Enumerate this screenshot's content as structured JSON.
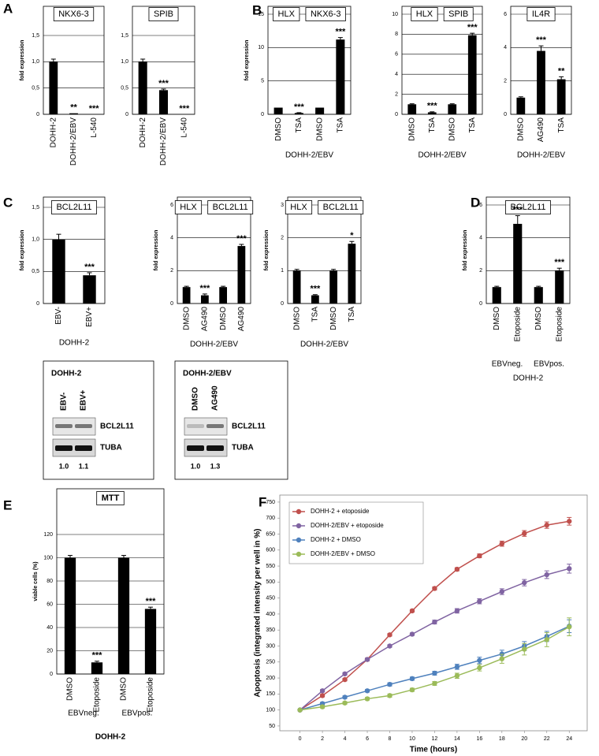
{
  "panel_labels": [
    "A",
    "B",
    "C",
    "D",
    "E",
    "F"
  ],
  "chart_data": [
    {
      "type": "bar",
      "titles": [
        "NKX6-3"
      ],
      "ylabel": "fold expression",
      "categories": [
        "DOHH-2",
        "DOHH-2/EBV",
        "L-540"
      ],
      "values": [
        1,
        0.02,
        0
      ],
      "errors": [
        0.05,
        0,
        0
      ],
      "annotations": [
        null,
        "**",
        "***"
      ],
      "ylim": [
        0,
        1.5
      ],
      "yticks": [
        0,
        {
          "value": 0.5,
          "label": "0,5"
        },
        {
          "value": 1,
          "label": "1,0"
        },
        {
          "value": 1.5,
          "label": "1,5"
        }
      ],
      "grid": true,
      "color": "#000000"
    },
    {
      "type": "bar",
      "titles": [
        "SPIB"
      ],
      "categories": [
        "DOHH-2",
        "DOHH-2/EBV",
        "L-540"
      ],
      "values": [
        1,
        0.46,
        0
      ],
      "errors": [
        0.05,
        0.02,
        0
      ],
      "annotations": [
        null,
        "***",
        "***"
      ],
      "ylim": [
        0,
        1.5
      ],
      "yticks": [
        0,
        {
          "value": 0.5,
          "label": "0,5"
        },
        {
          "value": 1,
          "label": "1,0"
        },
        {
          "value": 1.5,
          "label": "1,5"
        }
      ],
      "grid": true,
      "color": "#000000"
    },
    {
      "type": "bar",
      "titles": [
        "HLX",
        "NKX6-3"
      ],
      "ylabel": "fold expression",
      "xlabel": "DOHH-2/EBV",
      "categories": [
        "DMSO",
        "TSA",
        "DMSO",
        "TSA"
      ],
      "values": [
        1,
        0.2,
        1,
        11.2
      ],
      "errors": [
        0,
        0.05,
        0,
        0.3
      ],
      "annotations": [
        null,
        "***",
        null,
        "***"
      ],
      "ylim": [
        0,
        15
      ],
      "yticks": [
        0,
        5,
        10,
        15
      ],
      "grid": true,
      "color": "#000000"
    },
    {
      "type": "bar",
      "titles": [
        "HLX",
        "SPIB"
      ],
      "xlabel": "DOHH-2/EBV",
      "categories": [
        "DMSO",
        "TSA",
        "DMSO",
        "TSA"
      ],
      "values": [
        1,
        0.2,
        1,
        7.9
      ],
      "errors": [
        0.05,
        0.05,
        0.05,
        0.2
      ],
      "annotations": [
        null,
        "***",
        null,
        "***"
      ],
      "ylim": [
        0,
        10
      ],
      "yticks": [
        0,
        2,
        4,
        6,
        8,
        10
      ],
      "grid": true,
      "color": "#000000"
    },
    {
      "type": "bar",
      "titles": [
        "IL4R"
      ],
      "xlabel": "DOHH-2/EBV",
      "categories": [
        "DMSO",
        "AG490",
        "TSA"
      ],
      "values": [
        1,
        3.8,
        2.1
      ],
      "errors": [
        0.05,
        0.3,
        0.15
      ],
      "annotations": [
        null,
        "***",
        "**"
      ],
      "ylim": [
        0,
        6
      ],
      "yticks": [
        0,
        2,
        4,
        6
      ],
      "grid": true,
      "color": "#000000"
    },
    {
      "type": "bar",
      "titles": [
        "BCL2L11"
      ],
      "ylabel": "fold expression",
      "xlabel": "DOHH-2",
      "categories": [
        "EBV-",
        "EBV+"
      ],
      "values": [
        1,
        0.44
      ],
      "errors": [
        0.08,
        0.04
      ],
      "annotations": [
        null,
        "***"
      ],
      "ylim": [
        0,
        1.5
      ],
      "yticks": [
        0,
        {
          "value": 0.5,
          "label": "0,5"
        },
        {
          "value": 1,
          "label": "1,0"
        },
        {
          "value": 1.5,
          "label": "1,5"
        }
      ],
      "grid": true,
      "color": "#000000"
    },
    {
      "type": "bar",
      "titles": [
        "HLX",
        "BCL2L11"
      ],
      "ylabel": "fold expression",
      "xlabel": "DOHH-2/EBV",
      "categories": [
        "DMSO",
        "AG490",
        "DMSO",
        "AG490"
      ],
      "values": [
        1,
        0.5,
        1,
        3.5
      ],
      "errors": [
        0.05,
        0.08,
        0.05,
        0.1
      ],
      "annotations": [
        null,
        "***",
        null,
        "***"
      ],
      "ylim": [
        0,
        6
      ],
      "yticks": [
        0,
        2,
        4,
        6
      ],
      "grid": true,
      "color": "#000000"
    },
    {
      "type": "bar",
      "titles": [
        "HLX",
        "BCL2L11"
      ],
      "ylabel": "fold expression",
      "xlabel": "DOHH-2/EBV",
      "categories": [
        "DMSO",
        "TSA",
        "DMSO",
        "TSA"
      ],
      "values": [
        1,
        0.25,
        1,
        1.82
      ],
      "errors": [
        0.04,
        0.02,
        0.04,
        0.07
      ],
      "annotations": [
        null,
        "***",
        null,
        "*"
      ],
      "ylim": [
        0,
        3
      ],
      "yticks": [
        0,
        1,
        2,
        3
      ],
      "grid": true,
      "color": "#000000"
    },
    {
      "type": "bar",
      "titles": [
        "BCL2L11"
      ],
      "ylabel": "fold expression",
      "xlabel": "DOHH-2",
      "groups": [
        "EBVneg.",
        "EBVpos."
      ],
      "categories": [
        "DMSO",
        "Etoposide",
        "DMSO",
        "Etoposide"
      ],
      "values": [
        1,
        4.85,
        1,
        2
      ],
      "errors": [
        0.05,
        0.5,
        0.05,
        0.15
      ],
      "annotations": [
        null,
        "***",
        null,
        "***"
      ],
      "ylim": [
        0,
        6
      ],
      "yticks": [
        0,
        2,
        4,
        6
      ],
      "grid": true,
      "color": "#000000"
    },
    {
      "type": "bar",
      "titles": [
        "MTT"
      ],
      "ylabel": "viable cells (%)",
      "xlabel": "DOHH-2",
      "groups": [
        "EBVneg.",
        "EBVpos."
      ],
      "categories": [
        "DMSO",
        "Etoposide",
        "DMSO",
        "Etoposide"
      ],
      "values": [
        100,
        10,
        100,
        56
      ],
      "errors": [
        2,
        1,
        2,
        1.5
      ],
      "annotations": [
        null,
        "***",
        null,
        "***"
      ],
      "ylim": [
        0,
        120
      ],
      "yticks": [
        0,
        20,
        40,
        60,
        80,
        100,
        120
      ],
      "grid": true,
      "color": "#000000"
    },
    {
      "type": "line",
      "xlabel": "Time (hours)",
      "ylabel": "Apoptosis (integrated intensity per well in %)",
      "x": [
        0,
        2,
        4,
        6,
        8,
        10,
        12,
        14,
        16,
        18,
        20,
        22,
        24
      ],
      "xlim": [
        -1.8,
        25.6
      ],
      "xticks": [
        0,
        2,
        4,
        6,
        8,
        10,
        12,
        14,
        16,
        18,
        20,
        22,
        24
      ],
      "ylim": [
        35,
        772
      ],
      "yticks": [
        50,
        100,
        150,
        200,
        250,
        300,
        350,
        400,
        450,
        500,
        550,
        600,
        650,
        700,
        750
      ],
      "grid": false,
      "legend": "top-left",
      "series": [
        {
          "name": "DOHH-2 + etoposide",
          "color": "#c0504d",
          "values": [
            100,
            145,
            195,
            258,
            335,
            410,
            480,
            540,
            582,
            620,
            652,
            678,
            690
          ],
          "errors": [
            0,
            4,
            4,
            4,
            4,
            4,
            5,
            5,
            6,
            8,
            9,
            10,
            12
          ]
        },
        {
          "name": "DOHH-2/EBV + etoposide",
          "color": "#8064a2",
          "values": [
            100,
            160,
            213,
            258,
            300,
            337,
            375,
            410,
            440,
            470,
            498,
            523,
            542
          ],
          "errors": [
            0,
            4,
            4,
            4,
            4,
            4,
            6,
            7,
            8,
            9,
            10,
            12,
            14
          ]
        },
        {
          "name": "DOHH-2 + DMSO",
          "color": "#4f81bd",
          "values": [
            100,
            120,
            140,
            160,
            180,
            198,
            215,
            235,
            255,
            275,
            300,
            330,
            362
          ],
          "errors": [
            0,
            4,
            4,
            4,
            5,
            5,
            6,
            8,
            10,
            12,
            14,
            16,
            20
          ]
        },
        {
          "name": "DOHH-2/EBV + DMSO",
          "color": "#9bbb59",
          "values": [
            100,
            110,
            122,
            135,
            145,
            163,
            183,
            207,
            232,
            260,
            290,
            320,
            360
          ],
          "errors": [
            0,
            4,
            4,
            4,
            5,
            5,
            6,
            8,
            10,
            14,
            18,
            22,
            28
          ]
        }
      ]
    }
  ],
  "blots": [
    {
      "title": "DOHH-2",
      "lanes": [
        "EBV-",
        "EBV+"
      ],
      "rows": [
        "BCL2L11",
        "TUBA"
      ],
      "ratios": [
        "1.0",
        "1.1"
      ]
    },
    {
      "title": "DOHH-2/EBV",
      "lanes": [
        "DMSO",
        "AG490"
      ],
      "rows": [
        "BCL2L11",
        "TUBA"
      ],
      "ratios": [
        "1.0",
        "1.3"
      ]
    }
  ]
}
